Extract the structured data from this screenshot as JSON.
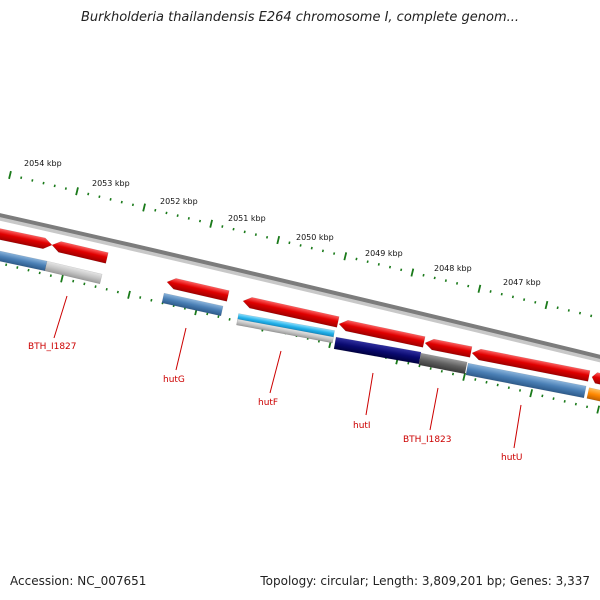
{
  "header": {
    "title": "Burkholderia thailandensis E264 chromosome I, complete genom..."
  },
  "footer": {
    "accession": "Accession: NC_007651",
    "summary": "Topology: circular; Length: 3,809,201 bp; Genes: 3,337"
  },
  "scale": {
    "unit": "kbp",
    "ticks": [
      "2054 kbp",
      "2053 kbp",
      "2052 kbp",
      "2051 kbp",
      "2050 kbp",
      "2049 kbp",
      "2048 kbp",
      "2047 kbp"
    ]
  },
  "genes": [
    {
      "label": "BTH_I1827"
    },
    {
      "label": "hutG"
    },
    {
      "label": "hutF"
    },
    {
      "label": "hutI"
    },
    {
      "label": "BTH_I1823"
    },
    {
      "label": "hutU"
    }
  ],
  "colors": {
    "forward_cds": "#e00000",
    "reverse_cds": "#4a7fb5",
    "light_gray": "#c4c4c4",
    "cyan": "#22b0e8",
    "navy": "#0a0a70",
    "dark_gray": "#606060",
    "orange": "#ff8800",
    "backbone": "#8a8a8a",
    "tick": "#1a7a1a",
    "label": "#cc0000"
  }
}
